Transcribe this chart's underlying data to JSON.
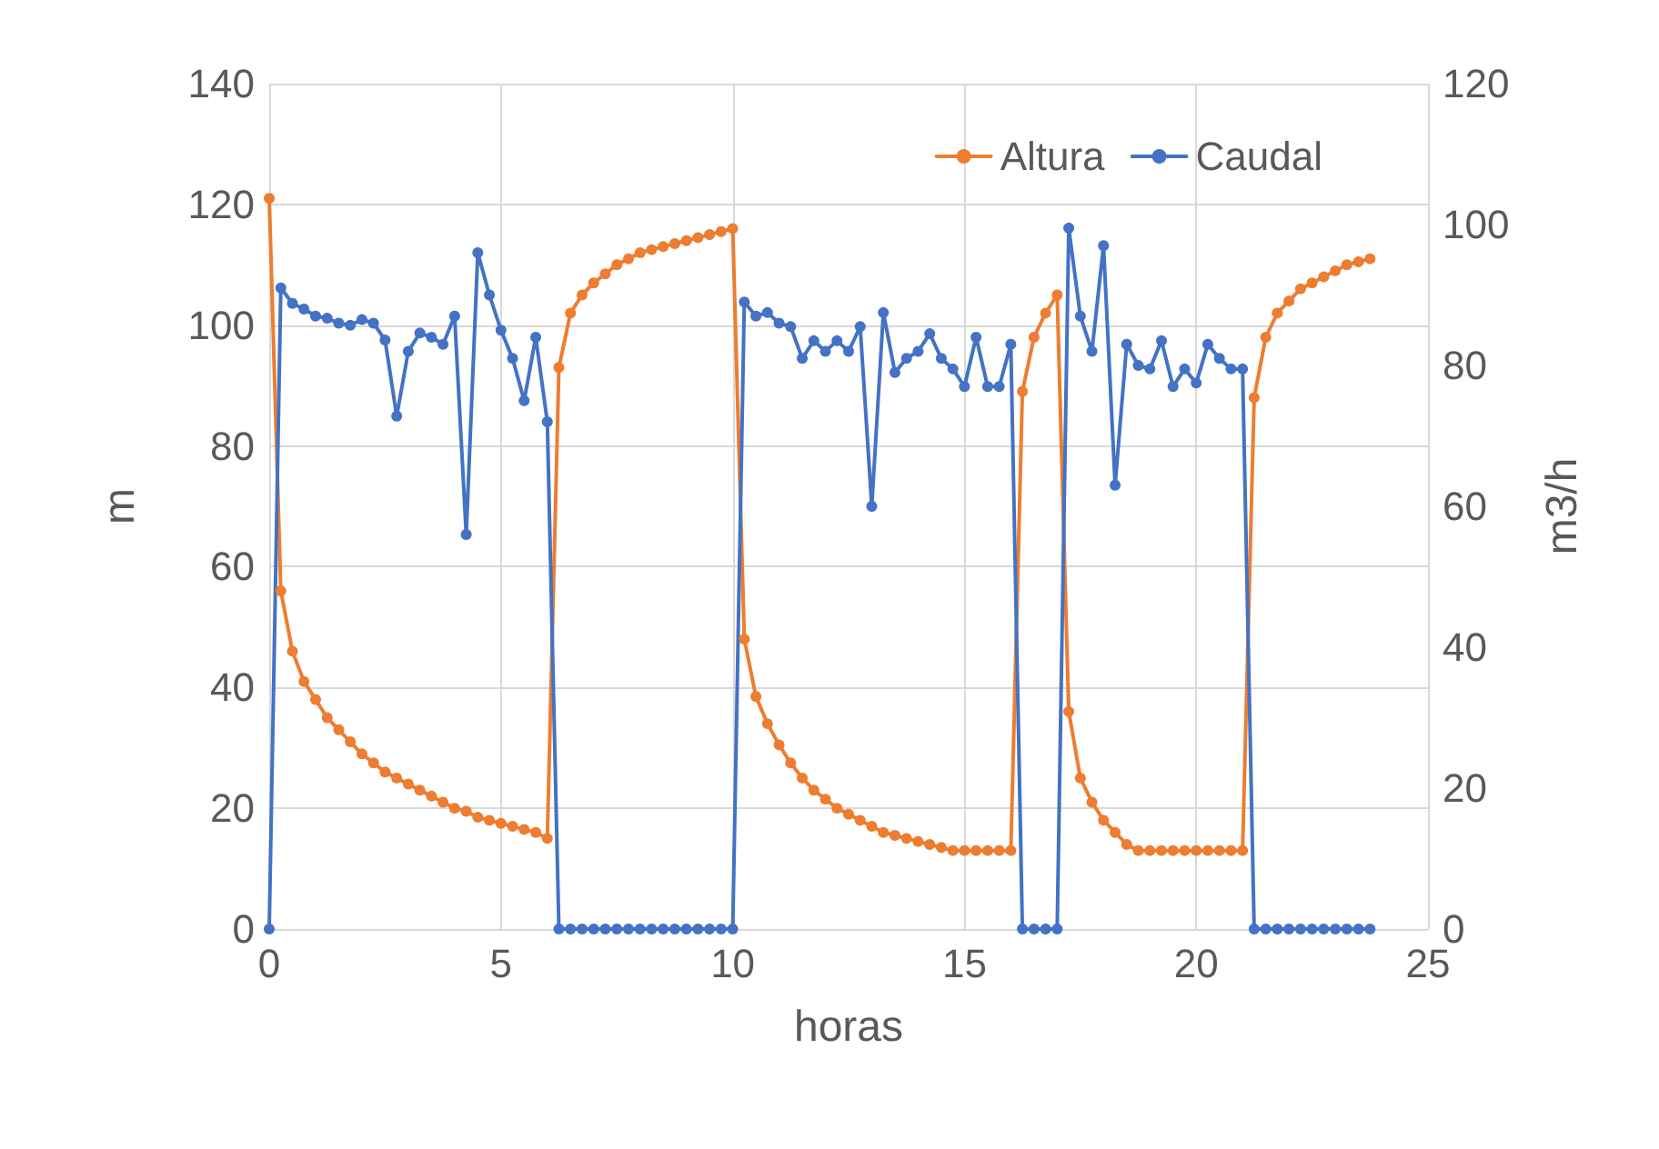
{
  "chart_data": {
    "type": "line",
    "xlabel": "horas",
    "ylabel": "m",
    "y2label": "m3/h",
    "x": [
      0,
      0.25,
      0.5,
      0.75,
      1,
      1.25,
      1.5,
      1.75,
      2,
      2.25,
      2.5,
      2.75,
      3,
      3.25,
      3.5,
      3.75,
      4,
      4.25,
      4.5,
      4.75,
      5,
      5.25,
      5.5,
      5.75,
      6,
      6.25,
      6.5,
      6.75,
      7,
      7.25,
      7.5,
      7.75,
      8,
      8.25,
      8.5,
      8.75,
      9,
      9.25,
      9.5,
      9.75,
      10,
      10.25,
      10.5,
      10.75,
      11,
      11.25,
      11.5,
      11.75,
      12,
      12.25,
      12.5,
      12.75,
      13,
      13.25,
      13.5,
      13.75,
      14,
      14.25,
      14.5,
      14.75,
      15,
      15.25,
      15.5,
      15.75,
      16,
      16.25,
      16.5,
      16.75,
      17,
      17.25,
      17.5,
      17.75,
      18,
      18.25,
      18.5,
      18.75,
      19,
      19.25,
      19.5,
      19.75,
      20,
      20.25,
      20.5,
      20.75,
      21,
      21.25,
      21.5,
      21.75,
      22,
      22.25,
      22.5,
      22.75,
      23,
      23.25,
      23.5,
      23.75
    ],
    "series": [
      {
        "name": "Altura",
        "color": "#ed7d31",
        "values": [
          121,
          56,
          46,
          41,
          38,
          35,
          33,
          31,
          29,
          27.5,
          26,
          25,
          24,
          23,
          22,
          21,
          20,
          19.5,
          18.5,
          18,
          17.5,
          17,
          16.5,
          16,
          15,
          93,
          102,
          105,
          107,
          108.5,
          110,
          111,
          112,
          112.5,
          113,
          113.5,
          114,
          114.5,
          115,
          115.5,
          116,
          48,
          38.5,
          34,
          30.5,
          27.5,
          25,
          23,
          21.5,
          20,
          19,
          18,
          17,
          16,
          15.5,
          15,
          14.5,
          14,
          13.5,
          13,
          13,
          13,
          13,
          13,
          13,
          89,
          98,
          102,
          105,
          36,
          25,
          21,
          18,
          16,
          14,
          13,
          13,
          13,
          13,
          13,
          13,
          13,
          13,
          13,
          13,
          88,
          98,
          102,
          104,
          106,
          107,
          108,
          109,
          110,
          110.5,
          111
        ]
      },
      {
        "name": "Caudal",
        "color": "#4472c4",
        "axis": "y2",
        "values": [
          0,
          91,
          88.8,
          88,
          87,
          86.7,
          86,
          85.7,
          86.5,
          86,
          83.6,
          72.8,
          82,
          84.6,
          84,
          83,
          87,
          56,
          96,
          90,
          85,
          81,
          75,
          84,
          72,
          0,
          0,
          0,
          0,
          0,
          0,
          0,
          0,
          0,
          0,
          0,
          0,
          0,
          0,
          0,
          0,
          89,
          87,
          87.5,
          86,
          85.5,
          81,
          83.5,
          82,
          83.5,
          82,
          85.5,
          60,
          87.5,
          79,
          81,
          82,
          84.5,
          81,
          79.5,
          77,
          84,
          77,
          77,
          83,
          0,
          0,
          0,
          0,
          99.5,
          87,
          82,
          97,
          63,
          83,
          80,
          79.5,
          83.5,
          77,
          79.5,
          77.5,
          83,
          81,
          79.5,
          79.5,
          0,
          0,
          0,
          0,
          0,
          0,
          0,
          0,
          0,
          0,
          0
        ]
      }
    ],
    "xlim": [
      0,
      25
    ],
    "xticks": [
      0,
      5,
      10,
      15,
      20,
      25
    ],
    "ylim": [
      0,
      140
    ],
    "yticks": [
      0,
      20,
      40,
      60,
      80,
      100,
      120,
      140
    ],
    "y2lim": [
      0,
      120
    ],
    "y2ticks": [
      0,
      20,
      40,
      60,
      80,
      100,
      120
    ],
    "grid": true,
    "legend": "top right",
    "marker": "circle",
    "line_style": "solid"
  }
}
